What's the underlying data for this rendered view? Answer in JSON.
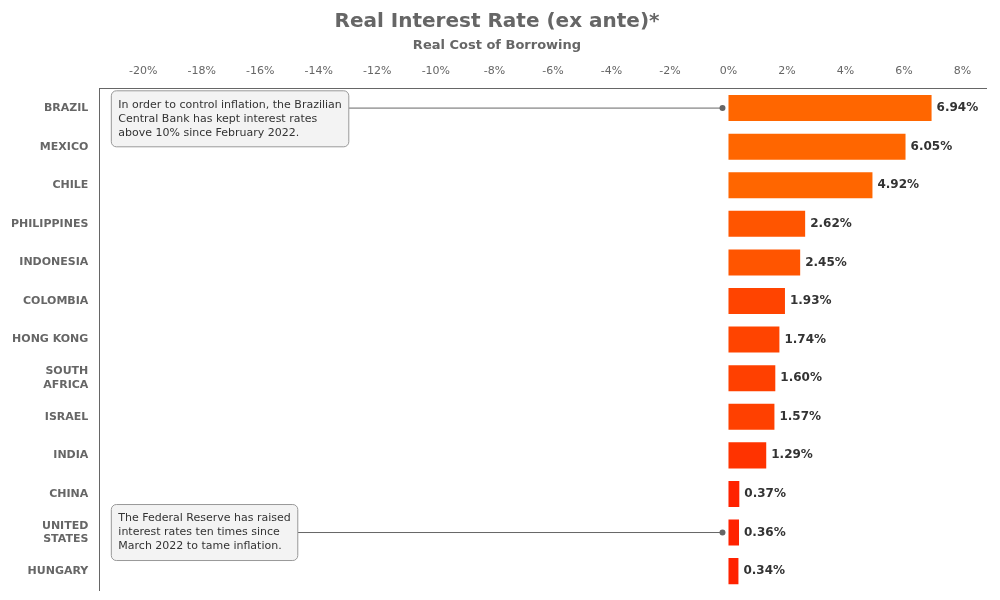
{
  "chart_data": {
    "type": "bar",
    "orientation": "horizontal",
    "title": "Real Interest Rate (ex ante)*",
    "subtitle": "Real Cost of Borrowing",
    "categories": [
      "BRAZIL",
      "MEXICO",
      "CHILE",
      "PHILIPPINES",
      "INDONESIA",
      "COLOMBIA",
      "HONG KONG",
      "SOUTH\nAFRICA",
      "ISRAEL",
      "INDIA",
      "CHINA",
      "UNITED\nSTATES",
      "HUNGARY"
    ],
    "values": [
      6.94,
      6.05,
      4.92,
      2.62,
      2.45,
      1.93,
      1.74,
      1.6,
      1.57,
      1.29,
      0.37,
      0.36,
      0.34
    ],
    "value_labels": [
      "6.94%",
      "6.05%",
      "4.92%",
      "2.62%",
      "2.45%",
      "1.93%",
      "1.74%",
      "1.60%",
      "1.57%",
      "1.29%",
      "0.37%",
      "0.36%",
      "0.34%"
    ],
    "data_labels": true,
    "colors": [
      "#ff6600",
      "#ff6600",
      "#ff6600",
      "#ff5500",
      "#ff5500",
      "#ff4400",
      "#ff4400",
      "#ff4000",
      "#ff4000",
      "#ff3300",
      "#ff2200",
      "#ff2200",
      "#ff2200"
    ],
    "xlim": [
      -21.5,
      8.8
    ],
    "xticks": [
      {
        "value": -20,
        "label": "-20%"
      },
      {
        "value": -18,
        "label": "-18%"
      },
      {
        "value": -16,
        "label": "-16%"
      },
      {
        "value": -14,
        "label": "-14%"
      },
      {
        "value": -12,
        "label": "-12%"
      },
      {
        "value": -10,
        "label": "-10%"
      },
      {
        "value": -8,
        "label": "-8%"
      },
      {
        "value": -6,
        "label": "-6%"
      },
      {
        "value": -4,
        "label": "-4%"
      },
      {
        "value": -2,
        "label": "-2%"
      },
      {
        "value": 0,
        "label": "0%"
      },
      {
        "value": 2,
        "label": "2%"
      },
      {
        "value": 4,
        "label": "4%"
      },
      {
        "value": 6,
        "label": "6%"
      },
      {
        "value": 8,
        "label": "8%"
      }
    ],
    "grid": false,
    "annotations": [
      {
        "text": "In order to control inflation, the Brazilian\nCentral Bank has kept interest rates\nabove 10% since February 2022.",
        "category": "BRAZIL"
      },
      {
        "text": "The Federal Reserve has raised\ninterest rates ten times since\nMarch 2022 to tame inflation.",
        "category": "UNITED\nSTATES"
      }
    ]
  }
}
